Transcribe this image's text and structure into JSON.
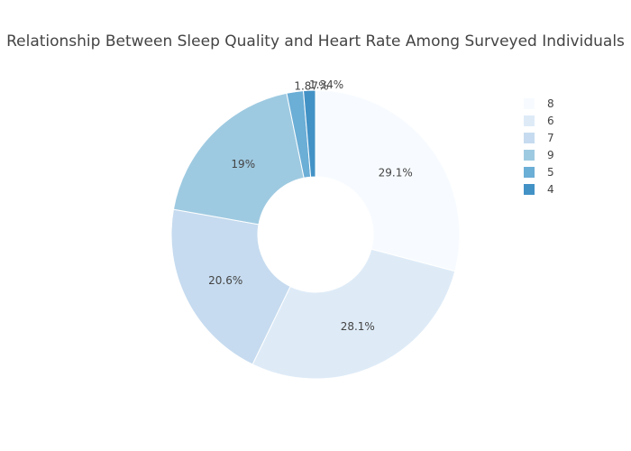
{
  "chart_data": {
    "type": "pie",
    "title": "Relationship Between Sleep Quality and Heart Rate Among Surveyed Individuals",
    "hole": 0.4,
    "slices": [
      {
        "label": "8",
        "value": 29.1,
        "percent_text": "29.1%",
        "color": "#f7fbff"
      },
      {
        "label": "6",
        "value": 28.1,
        "percent_text": "28.1%",
        "color": "#deebf7"
      },
      {
        "label": "7",
        "value": 20.6,
        "percent_text": "20.6%",
        "color": "#c6dbef"
      },
      {
        "label": "9",
        "value": 19.0,
        "percent_text": "19%",
        "color": "#9ecae1"
      },
      {
        "label": "5",
        "value": 1.87,
        "percent_text": "1.87%",
        "color": "#6baed6"
      },
      {
        "label": "4",
        "value": 1.34,
        "percent_text": "1.34%",
        "color": "#4292c6"
      }
    ],
    "legend_position": "right",
    "slice_border_color": "#ffffff"
  }
}
